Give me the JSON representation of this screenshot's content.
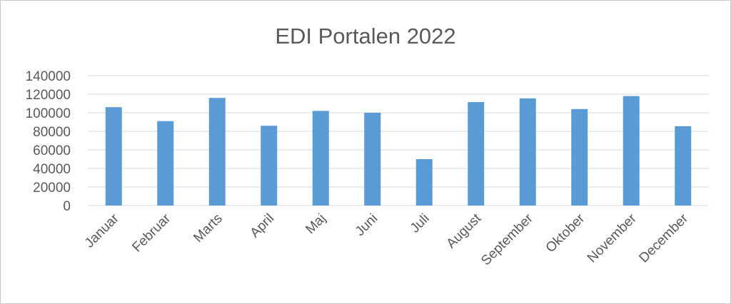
{
  "chart_data": {
    "type": "bar",
    "title": "EDI Portalen 2022",
    "xlabel": "",
    "ylabel": "",
    "categories": [
      "Januar",
      "Februar",
      "Marts",
      "April",
      "Maj",
      "Juni",
      "Juli",
      "August",
      "September",
      "Oktober",
      "November",
      "December"
    ],
    "values": [
      106000,
      91000,
      116000,
      86000,
      102000,
      100000,
      50000,
      111500,
      115500,
      104000,
      118000,
      85500
    ],
    "ylim": [
      0,
      140000
    ],
    "yticks": [
      "0",
      "20000",
      "40000",
      "60000",
      "80000",
      "100000",
      "120000",
      "140000"
    ],
    "grid": true,
    "legend": "none",
    "bar_color": "#5b9bd5"
  }
}
